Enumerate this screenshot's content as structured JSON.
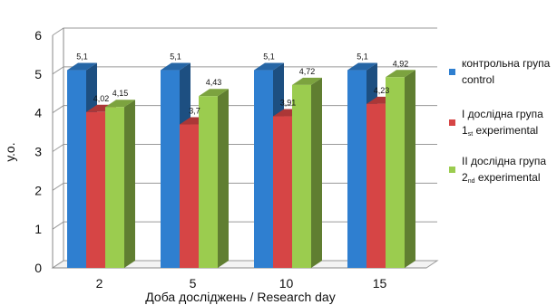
{
  "chart_data": {
    "type": "bar",
    "title": "",
    "xlabel": "Доба досліджень / Research day",
    "ylabel": "у.о.",
    "ylim": [
      0,
      6
    ],
    "yticks": [
      0,
      1,
      2,
      3,
      4,
      5,
      6
    ],
    "categories": [
      "2",
      "5",
      "10",
      "15"
    ],
    "grid": true,
    "legend_position": "right",
    "series": [
      {
        "name": "контрольна група control",
        "legend_line1": "контрольна група",
        "legend_line2_pre": "control",
        "legend_line2_sub": "",
        "legend_line2_post": "",
        "color": "#2f7fd0",
        "values": [
          5.1,
          5.1,
          5.1,
          5.1
        ],
        "labels": [
          "5,1",
          "5,1",
          "5,1",
          "5,1"
        ]
      },
      {
        "name": "І дослідна група 1st experimental",
        "legend_line1": "І дослідна група",
        "legend_line2_pre": "1",
        "legend_line2_sub": "st",
        "legend_line2_post": " experimental",
        "color": "#d64545",
        "values": [
          4.02,
          3.7,
          3.91,
          4.23
        ],
        "labels": [
          "4,02",
          "3,7",
          "3,91",
          "4,23"
        ]
      },
      {
        "name": "ІІ дослідна група 2nd experimental",
        "legend_line1": "ІІ дослідна група",
        "legend_line2_pre": "2",
        "legend_line2_sub": "nd",
        "legend_line2_post": " experimental",
        "color": "#9bcc4f",
        "values": [
          4.15,
          4.43,
          4.72,
          4.92
        ],
        "labels": [
          "4,15",
          "4,43",
          "4,72",
          "4,92"
        ]
      }
    ]
  }
}
